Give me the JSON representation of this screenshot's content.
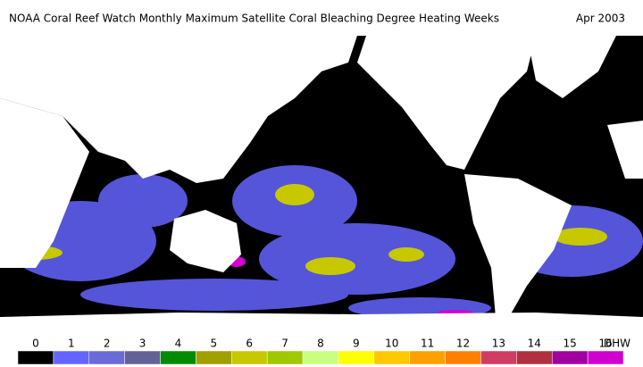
{
  "header": {
    "title": "NOAA Coral Reef Watch Monthly Maximum Satellite Coral Bleaching Degree Heating Weeks",
    "date": "Apr 2003"
  },
  "legend": {
    "unit": "DHW",
    "levels": [
      0,
      1,
      2,
      3,
      4,
      5,
      6,
      7,
      8,
      9,
      10,
      11,
      12,
      13,
      14,
      15,
      16
    ],
    "colors": [
      "#000000",
      "#6464ff",
      "#6a6ad8",
      "#626298",
      "#008c00",
      "#a0a000",
      "#c8c800",
      "#a0c800",
      "#c8ff80",
      "#ffff00",
      "#ffc800",
      "#ffa000",
      "#ff8000",
      "#d03c64",
      "#b03040",
      "#a000a0",
      "#d000d0"
    ]
  }
}
